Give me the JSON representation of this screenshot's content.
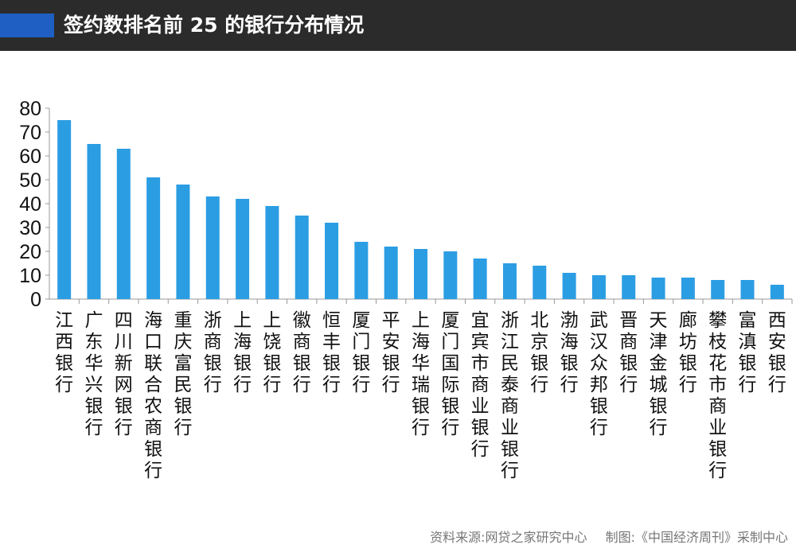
{
  "header": {
    "title": "签约数排名前 25 的银行分布情况",
    "accent_color": "#1f5fc4",
    "background_color": "#2b2b2b"
  },
  "chart_data": {
    "type": "bar",
    "title": "签约数排名前 25 的银行分布情况",
    "xlabel": "",
    "ylabel": "",
    "ylim": [
      0,
      80
    ],
    "yticks": [
      0,
      10,
      20,
      30,
      40,
      50,
      60,
      70,
      80
    ],
    "grid": false,
    "legend": "none",
    "bar_color": "#2b9de3",
    "categories": [
      "江西银行",
      "广东华兴银行",
      "四川新网银行",
      "海口联合农商银行",
      "重庆富民银行",
      "浙商银行",
      "上海银行",
      "上饶银行",
      "徽商银行",
      "恒丰银行",
      "厦门银行",
      "平安银行",
      "上海华瑞银行",
      "厦门国际银行",
      "宜宾市商业银行",
      "浙江民泰商业银行",
      "北京银行",
      "渤海银行",
      "武汉众邦银行",
      "晋商银行",
      "天津金城银行",
      "廊坊银行",
      "攀枝花市商业银行",
      "富滇银行",
      "西安银行"
    ],
    "values": [
      75,
      65,
      63,
      51,
      48,
      43,
      42,
      39,
      35,
      32,
      24,
      22,
      21,
      20,
      17,
      15,
      14,
      11,
      10,
      10,
      9,
      9,
      8,
      8,
      6
    ]
  },
  "footer": {
    "source": "资料来源:网贷之家研究中心",
    "credit": "制图:《中国经济周刊》采制中心"
  }
}
